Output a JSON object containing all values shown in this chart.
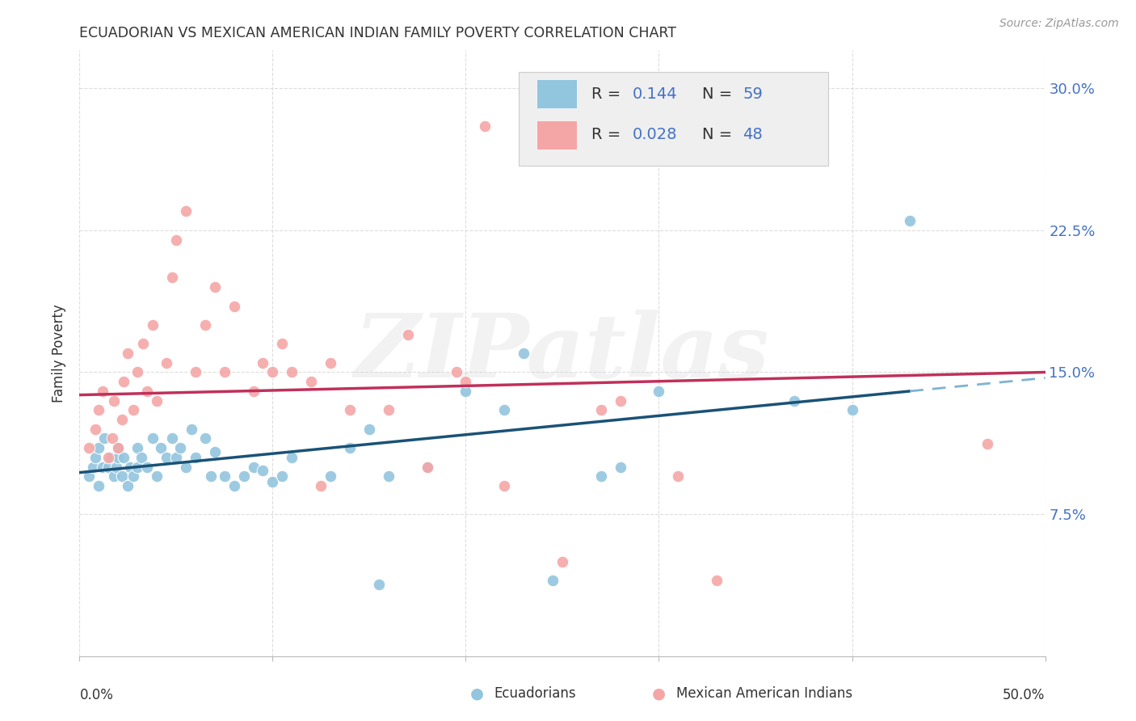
{
  "title": "ECUADORIAN VS MEXICAN AMERICAN INDIAN FAMILY POVERTY CORRELATION CHART",
  "source": "Source: ZipAtlas.com",
  "ylabel": "Family Poverty",
  "xmin": 0.0,
  "xmax": 0.5,
  "ymin": 0.0,
  "ymax": 0.32,
  "ecuadorian_color": "#92c5de",
  "mexican_color": "#f4a6a6",
  "line_color_blue": "#1a5276",
  "line_color_pink": "#c0305a",
  "line_color_dash": "#7fb3d3",
  "text_blue": "#4472c4",
  "text_dark": "#333333",
  "grid_color": "#d5d5d5",
  "legend_R1": "0.144",
  "legend_N1": "59",
  "legend_R2": "0.028",
  "legend_N2": "48",
  "ecuadorian_x": [
    0.005,
    0.007,
    0.008,
    0.01,
    0.01,
    0.012,
    0.013,
    0.015,
    0.016,
    0.018,
    0.019,
    0.02,
    0.02,
    0.022,
    0.023,
    0.025,
    0.026,
    0.028,
    0.03,
    0.03,
    0.032,
    0.035,
    0.038,
    0.04,
    0.042,
    0.045,
    0.048,
    0.05,
    0.052,
    0.055,
    0.058,
    0.06,
    0.065,
    0.068,
    0.07,
    0.075,
    0.08,
    0.085,
    0.09,
    0.095,
    0.1,
    0.105,
    0.11,
    0.13,
    0.14,
    0.15,
    0.155,
    0.16,
    0.18,
    0.2,
    0.22,
    0.23,
    0.245,
    0.27,
    0.28,
    0.3,
    0.37,
    0.4,
    0.43
  ],
  "ecuadorian_y": [
    0.095,
    0.1,
    0.105,
    0.09,
    0.11,
    0.1,
    0.115,
    0.1,
    0.105,
    0.095,
    0.1,
    0.105,
    0.11,
    0.095,
    0.105,
    0.09,
    0.1,
    0.095,
    0.1,
    0.11,
    0.105,
    0.1,
    0.115,
    0.095,
    0.11,
    0.105,
    0.115,
    0.105,
    0.11,
    0.1,
    0.12,
    0.105,
    0.115,
    0.095,
    0.108,
    0.095,
    0.09,
    0.095,
    0.1,
    0.098,
    0.092,
    0.095,
    0.105,
    0.095,
    0.11,
    0.12,
    0.038,
    0.095,
    0.1,
    0.14,
    0.13,
    0.16,
    0.04,
    0.095,
    0.1,
    0.14,
    0.135,
    0.13,
    0.23
  ],
  "mexican_x": [
    0.005,
    0.008,
    0.01,
    0.012,
    0.015,
    0.017,
    0.018,
    0.02,
    0.022,
    0.023,
    0.025,
    0.028,
    0.03,
    0.033,
    0.035,
    0.038,
    0.04,
    0.045,
    0.048,
    0.05,
    0.055,
    0.06,
    0.065,
    0.07,
    0.075,
    0.08,
    0.09,
    0.095,
    0.1,
    0.105,
    0.11,
    0.12,
    0.125,
    0.13,
    0.14,
    0.16,
    0.17,
    0.18,
    0.195,
    0.2,
    0.21,
    0.22,
    0.25,
    0.27,
    0.28,
    0.31,
    0.33,
    0.47
  ],
  "mexican_y": [
    0.11,
    0.12,
    0.13,
    0.14,
    0.105,
    0.115,
    0.135,
    0.11,
    0.125,
    0.145,
    0.16,
    0.13,
    0.15,
    0.165,
    0.14,
    0.175,
    0.135,
    0.155,
    0.2,
    0.22,
    0.235,
    0.15,
    0.175,
    0.195,
    0.15,
    0.185,
    0.14,
    0.155,
    0.15,
    0.165,
    0.15,
    0.145,
    0.09,
    0.155,
    0.13,
    0.13,
    0.17,
    0.1,
    0.15,
    0.145,
    0.28,
    0.09,
    0.05,
    0.13,
    0.135,
    0.095,
    0.04,
    0.112
  ],
  "line_ecu_x0": 0.0,
  "line_ecu_y0": 0.097,
  "line_ecu_x1": 0.43,
  "line_ecu_y1": 0.14,
  "line_ecu_dash_x0": 0.43,
  "line_ecu_dash_x1": 0.5,
  "line_mex_x0": 0.0,
  "line_mex_y0": 0.138,
  "line_mex_x1": 0.5,
  "line_mex_y1": 0.15
}
